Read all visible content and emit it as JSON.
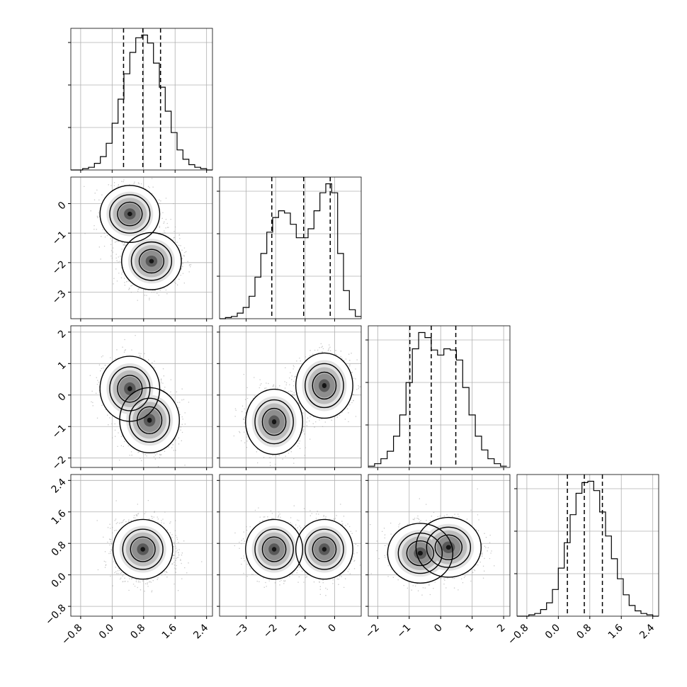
{
  "chart_data": {
    "type": "corner",
    "parameters": [
      {
        "id": "p0",
        "range": [
          -1.05,
          2.55
        ],
        "ticks": [
          -0.8,
          0.0,
          0.8,
          1.6,
          2.4
        ],
        "tick_labels": [
          "−0.8",
          "0.0",
          "0.8",
          "1.6",
          "2.4"
        ],
        "quantiles": [
          0.29,
          0.78,
          1.23
        ]
      },
      {
        "id": "p1",
        "range": [
          -3.9,
          0.9
        ],
        "ticks": [
          -3,
          -2,
          -1,
          0
        ],
        "tick_labels": [
          "−3",
          "−2",
          "−1",
          "0"
        ],
        "quantiles": [
          -2.13,
          -1.05,
          -0.15
        ]
      },
      {
        "id": "p2",
        "range": [
          -2.3,
          2.2
        ],
        "ticks": [
          -2,
          -1,
          0,
          1,
          2
        ],
        "tick_labels": [
          "−2",
          "−1",
          "0",
          "1",
          "2"
        ],
        "quantiles": [
          -0.98,
          -0.3,
          0.48
        ]
      },
      {
        "id": "p3",
        "range": [
          -1.05,
          2.55
        ],
        "ticks": [
          -0.8,
          0.0,
          0.8,
          1.6,
          2.4
        ],
        "tick_labels": [
          "−0.8",
          "0.0",
          "0.8",
          "1.6",
          "2.4"
        ],
        "quantiles": [
          0.23,
          0.66,
          1.12
        ]
      }
    ],
    "histograms": [
      {
        "param": "p0",
        "bins": [
          -1.05,
          -0.9,
          -0.75,
          -0.6,
          -0.45,
          -0.3,
          -0.15,
          0.0,
          0.15,
          0.3,
          0.45,
          0.6,
          0.75,
          0.9,
          1.05,
          1.2,
          1.35,
          1.5,
          1.65,
          1.8,
          1.95,
          2.1,
          2.25,
          2.4,
          2.55
        ],
        "counts": [
          0,
          0,
          1,
          2,
          5,
          10,
          20,
          35,
          53,
          72,
          88,
          99,
          101,
          95,
          80,
          62,
          44,
          28,
          15,
          8,
          4,
          2,
          1,
          0
        ]
      },
      {
        "param": "p1",
        "bins": [
          -3.9,
          -3.7,
          -3.5,
          -3.3,
          -3.1,
          -2.9,
          -2.7,
          -2.5,
          -2.3,
          -2.1,
          -1.9,
          -1.7,
          -1.5,
          -1.3,
          -1.1,
          -0.9,
          -0.7,
          -0.5,
          -0.3,
          -0.1,
          0.1,
          0.3,
          0.5,
          0.7,
          0.9
        ],
        "counts": [
          0,
          1,
          2,
          5,
          10,
          20,
          37,
          58,
          77,
          90,
          96,
          94,
          84,
          72,
          72,
          80,
          96,
          112,
          120,
          112,
          58,
          25,
          8,
          2
        ]
      },
      {
        "param": "p2",
        "bins": [
          -2.3,
          -2.1,
          -1.9,
          -1.7,
          -1.5,
          -1.3,
          -1.1,
          -0.9,
          -0.7,
          -0.5,
          -0.3,
          -0.1,
          0.1,
          0.3,
          0.5,
          0.7,
          0.9,
          1.1,
          1.3,
          1.5,
          1.7,
          1.9,
          2.1
        ],
        "counts": [
          1,
          3,
          7,
          13,
          25,
          42,
          68,
          95,
          108,
          104,
          94,
          90,
          95,
          94,
          86,
          64,
          42,
          25,
          14,
          7,
          3,
          1
        ]
      },
      {
        "param": "p3",
        "bins": [
          -1.05,
          -0.9,
          -0.75,
          -0.6,
          -0.45,
          -0.3,
          -0.15,
          0.0,
          0.15,
          0.3,
          0.45,
          0.6,
          0.75,
          0.9,
          1.05,
          1.2,
          1.35,
          1.5,
          1.65,
          1.8,
          1.95,
          2.1,
          2.25,
          2.4,
          2.55
        ],
        "counts": [
          0,
          0,
          1,
          2,
          5,
          10,
          20,
          36,
          55,
          76,
          92,
          100,
          101,
          94,
          78,
          60,
          43,
          28,
          16,
          8,
          4,
          2,
          1,
          0
        ]
      }
    ],
    "joint_distributions": [
      {
        "x": "p0",
        "y": "p1",
        "peaks": [
          {
            "x": 0.45,
            "y": -0.35
          },
          {
            "x": 1.0,
            "y": -1.95
          }
        ]
      },
      {
        "x": "p0",
        "y": "p2",
        "peaks": [
          {
            "x": 0.45,
            "y": 0.2
          },
          {
            "x": 0.95,
            "y": -0.8
          }
        ]
      },
      {
        "x": "p1",
        "y": "p2",
        "peaks": [
          {
            "x": -2.05,
            "y": -0.85
          },
          {
            "x": -0.35,
            "y": 0.3
          }
        ]
      },
      {
        "x": "p0",
        "y": "p3",
        "peaks": [
          {
            "x": 0.78,
            "y": 0.65
          }
        ]
      },
      {
        "x": "p1",
        "y": "p3",
        "peaks": [
          {
            "x": -2.05,
            "y": 0.65
          },
          {
            "x": -0.35,
            "y": 0.65
          }
        ]
      },
      {
        "x": "p2",
        "y": "p3",
        "peaks": [
          {
            "x": -0.65,
            "y": 0.55
          },
          {
            "x": 0.25,
            "y": 0.7
          }
        ]
      }
    ],
    "grid": true,
    "colors": {
      "density": "#000000",
      "scatter": "#9a9a9a",
      "grid": "#b0b0b0"
    }
  }
}
